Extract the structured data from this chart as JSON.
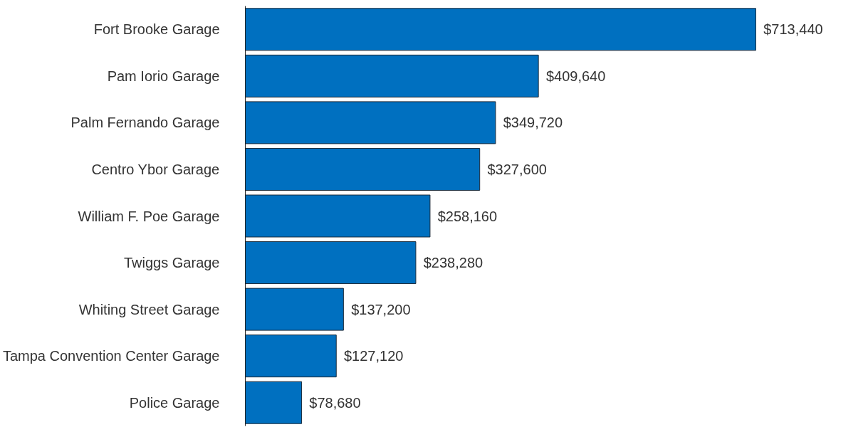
{
  "chart_data": {
    "type": "bar",
    "orientation": "horizontal",
    "categories": [
      "Fort Brooke Garage",
      "Pam Iorio Garage",
      "Palm Fernando Garage",
      "Centro Ybor Garage",
      "William F. Poe Garage",
      "Twiggs Garage",
      "Whiting Street Garage",
      "Tampa Convention Center Garage",
      "Police Garage"
    ],
    "values": [
      713440,
      409640,
      349720,
      327600,
      258160,
      238280,
      137200,
      127120,
      78680
    ],
    "value_labels": [
      "$713,440",
      "$409,640",
      "$349,720",
      "$327,600",
      "$258,160",
      "$238,280",
      "$137,200",
      "$127,120",
      "$78,680"
    ],
    "color": "#0070c0",
    "grid": false,
    "tick_labels": "y"
  }
}
